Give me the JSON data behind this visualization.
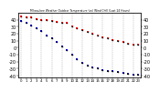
{
  "title": "Milwaukee Weather Outdoor Temperature (vs) Wind Chill (Last 24 Hours)",
  "background_color": "#ffffff",
  "grid_color": "#888888",
  "temp_color": "#ff0000",
  "windchill_color": "#0000bb",
  "marker_color": "#000000",
  "hours": [
    0,
    1,
    2,
    3,
    4,
    5,
    6,
    7,
    8,
    9,
    10,
    11,
    12,
    13,
    14,
    15,
    16,
    17,
    18,
    19,
    20,
    21,
    22,
    23
  ],
  "temp_values": [
    45,
    44,
    43,
    41,
    40,
    39,
    38,
    37,
    36,
    35,
    30,
    28,
    25,
    22,
    20,
    18,
    15,
    13,
    11,
    9,
    8,
    6,
    5,
    4
  ],
  "windchill_values": [
    38,
    36,
    32,
    28,
    24,
    18,
    14,
    8,
    2,
    -4,
    -10,
    -16,
    -21,
    -25,
    -28,
    -30,
    -32,
    -33,
    -34,
    -35,
    -36,
    -37,
    -38,
    -39
  ],
  "ylim": [
    -42,
    50
  ],
  "yticks": [
    40,
    30,
    20,
    10,
    0,
    -10,
    -20,
    -30,
    -40
  ],
  "ylabel_fontsize": 3.5,
  "xlabel_fontsize": 2.8,
  "marker_size": 1.8,
  "line_width": 0.0
}
